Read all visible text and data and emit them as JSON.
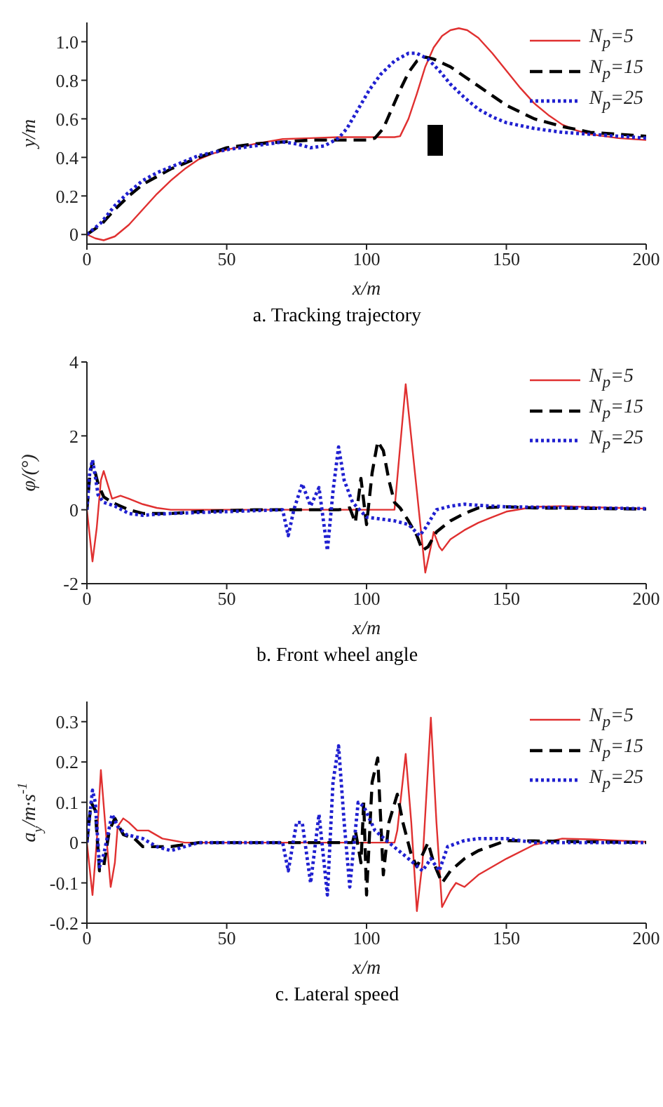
{
  "chart_data": [
    {
      "type": "line",
      "title": "a. Tracking trajectory",
      "xlabel": "x/m",
      "ylabel": "y/m",
      "xlim": [
        0,
        200
      ],
      "xticks": [
        0,
        50,
        100,
        150,
        200
      ],
      "ylim": [
        -0.05,
        1.1
      ],
      "yticks": [
        {
          "value": 0,
          "label": "0"
        },
        {
          "value": 0.2,
          "label": "0.2"
        },
        {
          "value": 0.4,
          "label": "0.4"
        },
        {
          "value": 0.6,
          "label": "0.6"
        },
        {
          "value": 0.8,
          "label": "0.8"
        },
        {
          "value": 1,
          "label": "1.0"
        }
      ],
      "legend": "top right",
      "grid": false,
      "series": [
        {
          "name": "N$_{p}$=5",
          "color": "#e03030",
          "line_style": "solid",
          "x": [
            0,
            3,
            6,
            10,
            15,
            20,
            25,
            30,
            35,
            40,
            45,
            50,
            60,
            70,
            80,
            90,
            100,
            110,
            112,
            115,
            118,
            121,
            124,
            127,
            130,
            133,
            136,
            140,
            145,
            150,
            155,
            160,
            165,
            170,
            175,
            180,
            190,
            200
          ],
          "values": [
            0,
            -0.02,
            -0.03,
            -0.01,
            0.05,
            0.13,
            0.21,
            0.28,
            0.34,
            0.39,
            0.42,
            0.44,
            0.47,
            0.495,
            0.5,
            0.505,
            0.505,
            0.505,
            0.51,
            0.6,
            0.73,
            0.87,
            0.97,
            1.03,
            1.06,
            1.07,
            1.06,
            1.02,
            0.94,
            0.85,
            0.76,
            0.68,
            0.62,
            0.57,
            0.54,
            0.52,
            0.5,
            0.49
          ]
        },
        {
          "name": "N$_{p}$=15",
          "color": "#000000",
          "line_style": "dashed",
          "x": [
            0,
            5,
            10,
            15,
            20,
            25,
            30,
            35,
            40,
            50,
            60,
            70,
            80,
            90,
            100,
            103,
            106,
            109,
            112,
            115,
            118,
            121,
            124,
            130,
            135,
            140,
            145,
            150,
            160,
            170,
            180,
            190,
            200
          ],
          "values": [
            0,
            0.05,
            0.13,
            0.2,
            0.26,
            0.3,
            0.34,
            0.37,
            0.4,
            0.45,
            0.47,
            0.48,
            0.49,
            0.49,
            0.49,
            0.5,
            0.55,
            0.65,
            0.75,
            0.84,
            0.9,
            0.92,
            0.91,
            0.87,
            0.82,
            0.77,
            0.72,
            0.67,
            0.6,
            0.56,
            0.53,
            0.52,
            0.51
          ]
        },
        {
          "name": "N$_{p}$=25",
          "color": "#2020d0",
          "line_style": "dotted",
          "x": [
            0,
            5,
            10,
            15,
            20,
            25,
            30,
            35,
            40,
            50,
            60,
            70,
            75,
            80,
            85,
            90,
            93,
            97,
            101,
            105,
            110,
            115,
            118,
            122,
            126,
            130,
            135,
            140,
            145,
            150,
            160,
            170,
            180,
            190,
            200
          ],
          "values": [
            0,
            0.06,
            0.15,
            0.22,
            0.28,
            0.32,
            0.35,
            0.38,
            0.41,
            0.44,
            0.46,
            0.48,
            0.47,
            0.45,
            0.46,
            0.5,
            0.55,
            0.65,
            0.75,
            0.83,
            0.9,
            0.94,
            0.94,
            0.91,
            0.85,
            0.78,
            0.71,
            0.65,
            0.61,
            0.58,
            0.55,
            0.53,
            0.52,
            0.51,
            0.5
          ]
        }
      ]
    },
    {
      "type": "line",
      "title": "b. Front wheel angle",
      "xlabel": "x/m",
      "ylabel": "φ/(°)",
      "xlim": [
        0,
        200
      ],
      "xticks": [
        0,
        50,
        100,
        150,
        200
      ],
      "ylim": [
        -2,
        4
      ],
      "yticks": [
        -2,
        0,
        2,
        4
      ],
      "legend": "top right",
      "grid": false,
      "series": [
        {
          "name": "N$_{p}$=5",
          "color": "#e03030",
          "line_style": "solid",
          "x": [
            0,
            2,
            3.5,
            5,
            6,
            7,
            9,
            12,
            15,
            20,
            25,
            30,
            50,
            80,
            100,
            110,
            114,
            118,
            121,
            123,
            124,
            126,
            127,
            130,
            135,
            140,
            145,
            150,
            160,
            170,
            180,
            190,
            200
          ],
          "values": [
            0,
            -1.4,
            -0.5,
            0.8,
            1.05,
            0.8,
            0.3,
            0.38,
            0.3,
            0.15,
            0.05,
            0,
            0,
            0,
            0,
            0,
            3.4,
            0.5,
            -1.7,
            -1,
            -0.6,
            -1,
            -1.1,
            -0.8,
            -0.55,
            -0.35,
            -0.2,
            -0.05,
            0.08,
            0.1,
            0.07,
            0.05,
            0.03
          ]
        },
        {
          "name": "N$_{p}$=15",
          "color": "#000000",
          "line_style": "dashed",
          "x": [
            0,
            1,
            2,
            4,
            6,
            9,
            12,
            15,
            20,
            30,
            40,
            60,
            90,
            94,
            96,
            98,
            100,
            102,
            104,
            106,
            108,
            110,
            112,
            115,
            118,
            120,
            122,
            125,
            130,
            135,
            140,
            150,
            160,
            200
          ],
          "values": [
            0,
            0.9,
            1.3,
            0.7,
            0.35,
            0.2,
            0.1,
            0,
            -0.1,
            -0.1,
            -0.05,
            0,
            0,
            0.05,
            -0.35,
            0.85,
            -0.4,
            1,
            1.85,
            1.6,
            0.8,
            0.2,
            0.05,
            -0.3,
            -0.7,
            -1.1,
            -1,
            -0.6,
            -0.3,
            -0.1,
            0.05,
            0.08,
            0.05,
            0.02
          ]
        },
        {
          "name": "N$_{p}$=25",
          "color": "#2020d0",
          "line_style": "dotted",
          "x": [
            0,
            1,
            2,
            3,
            4,
            6,
            10,
            15,
            20,
            30,
            50,
            70,
            72,
            74,
            77,
            80,
            83,
            86,
            88,
            90,
            92,
            95,
            100,
            110,
            115,
            119,
            121,
            125,
            130,
            135,
            140,
            150,
            200
          ],
          "values": [
            0,
            1,
            1.35,
            0.9,
            0.4,
            0.2,
            0.1,
            -0.1,
            -0.15,
            -0.1,
            -0.05,
            0,
            -0.7,
            0,
            0.7,
            0.1,
            0.6,
            -1.1,
            0.5,
            1.7,
            0.8,
            0.2,
            -0.2,
            -0.3,
            -0.4,
            -0.7,
            -0.5,
            0,
            0.1,
            0.15,
            0.12,
            0.08,
            0.03
          ]
        }
      ]
    },
    {
      "type": "line",
      "title": "c. Lateral speed",
      "xlabel": "x/m",
      "ylabel": "a$_{y}$/m·s$^{-1}$",
      "xlim": [
        0,
        200
      ],
      "xticks": [
        0,
        50,
        100,
        150,
        200
      ],
      "ylim": [
        -0.2,
        0.35
      ],
      "yticks": [
        -0.2,
        -0.1,
        0,
        0.1,
        0.2,
        0.3
      ],
      "legend": "top right",
      "grid": false,
      "series": [
        {
          "name": "N$_{p}$=5",
          "color": "#e03030",
          "line_style": "solid",
          "x": [
            0,
            2,
            3.5,
            5,
            6.5,
            8.5,
            10,
            11,
            13,
            15,
            18,
            22,
            27,
            35,
            60,
            110,
            111,
            114,
            116,
            118,
            120,
            123,
            125,
            127,
            130,
            132,
            135,
            140,
            150,
            160,
            170,
            180,
            200
          ],
          "values": [
            0,
            -0.13,
            0,
            0.18,
            0.05,
            -0.11,
            -0.05,
            0.04,
            0.06,
            0.05,
            0.03,
            0.03,
            0.01,
            0,
            0,
            0,
            0.03,
            0.22,
            0.05,
            -0.17,
            -0.05,
            0.31,
            0.05,
            -0.16,
            -0.12,
            -0.1,
            -0.11,
            -0.08,
            -0.04,
            -0.005,
            0.01,
            0.008,
            0.002
          ]
        },
        {
          "name": "N$_{p}$=15",
          "color": "#000000",
          "line_style": "dashed",
          "x": [
            0,
            1.5,
            3,
            4.5,
            6,
            8,
            10,
            13,
            17,
            20,
            25,
            30,
            40,
            95,
            96,
            98,
            99,
            100,
            102,
            104,
            106,
            108,
            111,
            113,
            116,
            118,
            120,
            122,
            124,
            127,
            130,
            135,
            140,
            150,
            200
          ],
          "values": [
            0,
            0.1,
            0.08,
            -0.07,
            -0.06,
            0.03,
            0.06,
            0.02,
            0.01,
            -0.01,
            -0.01,
            -0.01,
            0,
            0,
            0.03,
            -0.05,
            0.1,
            -0.13,
            0.15,
            0.21,
            -0.08,
            0.05,
            0.12,
            0.05,
            -0.03,
            -0.06,
            -0.03,
            0,
            -0.05,
            -0.1,
            -0.07,
            -0.04,
            -0.02,
            0.005,
            0
          ]
        },
        {
          "name": "N$_{p}$=25",
          "color": "#2020d0",
          "line_style": "dotted",
          "x": [
            0,
            2,
            3,
            4.5,
            6,
            9,
            11,
            14,
            20,
            25,
            30,
            40,
            70,
            72,
            75,
            77,
            80,
            83,
            86,
            88,
            90,
            92,
            94,
            97,
            99,
            103,
            108,
            115,
            120,
            123,
            126,
            129,
            135,
            140,
            150,
            160,
            200
          ],
          "values": [
            0,
            0.13,
            0.1,
            -0.06,
            -0.03,
            0.07,
            0.04,
            0.02,
            0.01,
            -0.01,
            -0.02,
            0,
            0,
            -0.07,
            0.05,
            0.05,
            -0.1,
            0.07,
            -0.13,
            0.15,
            0.24,
            0.05,
            -0.11,
            0.1,
            0.09,
            0.03,
            0,
            -0.04,
            -0.07,
            -0.04,
            -0.07,
            -0.01,
            0.005,
            0.01,
            0.01,
            0,
            0
          ]
        }
      ]
    }
  ]
}
